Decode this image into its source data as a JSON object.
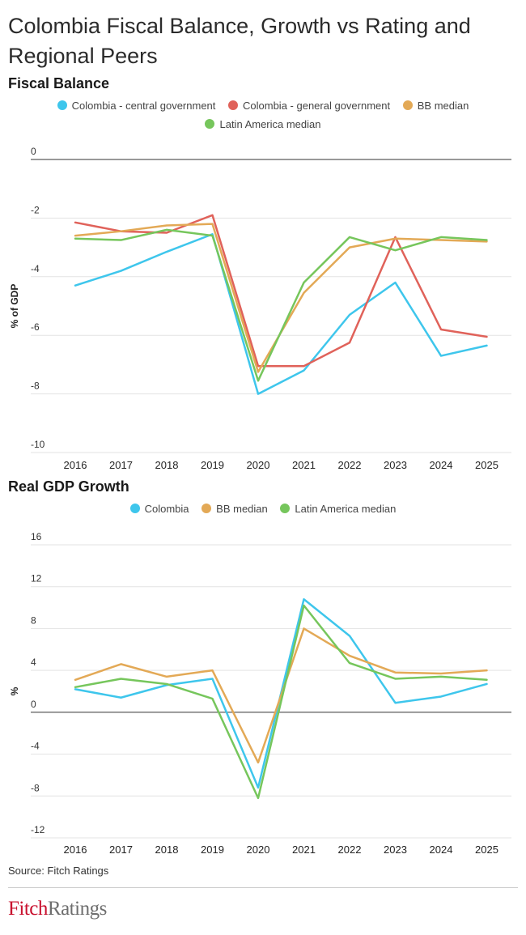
{
  "title": "Colombia Fiscal Balance, Growth vs Rating and Regional Peers",
  "source": "Source: Fitch Ratings",
  "logo": {
    "part1": "Fitch",
    "part2": "Ratings"
  },
  "chart_data": [
    {
      "type": "line",
      "title": "Fiscal Balance",
      "ylabel": "% of GDP",
      "xlabel": "",
      "x": [
        "2016",
        "2017",
        "2018",
        "2019",
        "2020",
        "2021",
        "2022",
        "2023",
        "2024",
        "2025"
      ],
      "ylim": [
        -10,
        0
      ],
      "yticks": [
        0,
        -2,
        -4,
        -6,
        -8,
        -10
      ],
      "legend": "top",
      "grid": true,
      "series": [
        {
          "name": "Colombia - central government",
          "color": "#3ec6ec",
          "values": [
            -4.3,
            -3.8,
            -3.15,
            -2.55,
            -8.0,
            -7.2,
            -5.3,
            -4.2,
            -6.7,
            -6.35
          ]
        },
        {
          "name": "Colombia - general government",
          "color": "#e0625a",
          "values": [
            -2.15,
            -2.45,
            -2.5,
            -1.9,
            -7.05,
            -7.05,
            -6.25,
            -2.65,
            -5.8,
            -6.05
          ]
        },
        {
          "name": "BB median",
          "color": "#e3a956",
          "values": [
            -2.6,
            -2.45,
            -2.25,
            -2.2,
            -7.25,
            -4.55,
            -3.0,
            -2.7,
            -2.75,
            -2.8
          ]
        },
        {
          "name": "Latin America median",
          "color": "#76c65c",
          "values": [
            -2.7,
            -2.75,
            -2.4,
            -2.6,
            -7.55,
            -4.2,
            -2.65,
            -3.1,
            -2.65,
            -2.75
          ]
        }
      ]
    },
    {
      "type": "line",
      "title": "Real GDP Growth",
      "ylabel": "%",
      "xlabel": "",
      "x": [
        "2016",
        "2017",
        "2018",
        "2019",
        "2020",
        "2021",
        "2022",
        "2023",
        "2024",
        "2025"
      ],
      "ylim": [
        -12,
        16
      ],
      "yticks": [
        16,
        12,
        8,
        4,
        0,
        -4,
        -8,
        -12
      ],
      "legend": "top",
      "grid": true,
      "series": [
        {
          "name": "Colombia",
          "color": "#3ec6ec",
          "values": [
            2.2,
            1.4,
            2.6,
            3.2,
            -7.2,
            10.8,
            7.3,
            0.9,
            1.5,
            2.7
          ]
        },
        {
          "name": "BB median",
          "color": "#e3a956",
          "values": [
            3.1,
            4.6,
            3.4,
            4.0,
            -4.8,
            8.0,
            5.4,
            3.8,
            3.7,
            4.0
          ]
        },
        {
          "name": "Latin America median",
          "color": "#76c65c",
          "values": [
            2.4,
            3.2,
            2.7,
            1.3,
            -8.2,
            10.2,
            4.7,
            3.2,
            3.4,
            3.1
          ]
        }
      ]
    }
  ]
}
